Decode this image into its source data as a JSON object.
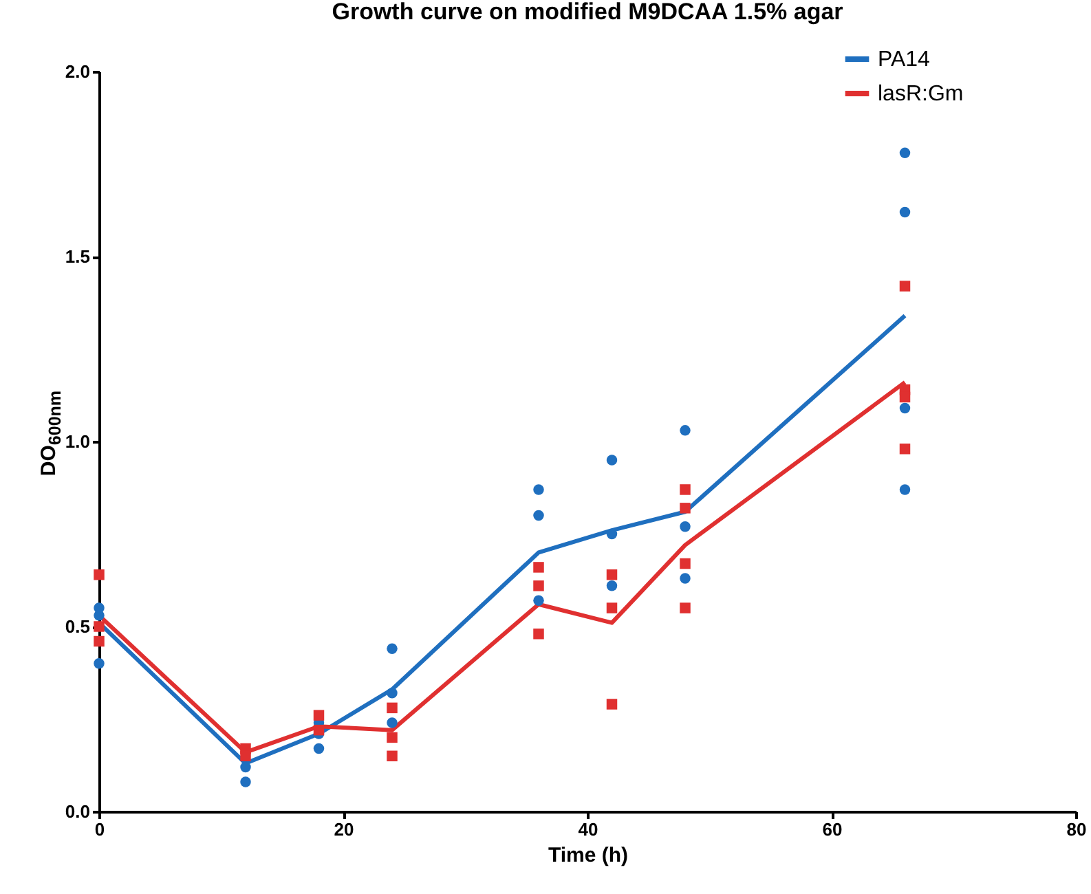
{
  "chart_data": {
    "type": "line",
    "title": "Growth curve on modified M9DCAA 1.5% agar",
    "xlabel": "Time (h)",
    "ylabel": "DO$_{600nm}$",
    "xlim": [
      0,
      80
    ],
    "xticks": [
      0,
      20,
      40,
      60,
      80
    ],
    "ylim": [
      0,
      2
    ],
    "yticks": [
      {
        "value": 0,
        "label": "0.0"
      },
      {
        "value": 0.5,
        "label": "0.5"
      },
      {
        "value": 1,
        "label": "1.0"
      },
      {
        "value": 1.5,
        "label": "1.5"
      },
      {
        "value": 2,
        "label": "2.0"
      }
    ],
    "grid": false,
    "legend": "top right",
    "series": [
      {
        "name": "PA14",
        "color": "#1f6fbf",
        "x": [
          0,
          12,
          18,
          24,
          36,
          42,
          48,
          66
        ],
        "values": [
          0.51,
          0.13,
          0.21,
          0.33,
          0.7,
          0.76,
          0.81,
          1.34
        ]
      },
      {
        "type": "scatter",
        "marker": "circle",
        "color": "#1f6fbf",
        "x": [
          0,
          0,
          0,
          12,
          12,
          18,
          18,
          18,
          24,
          24,
          24,
          36,
          36,
          36,
          42,
          42,
          42,
          48,
          48,
          48,
          66,
          66,
          66,
          66
        ],
        "values": [
          0.55,
          0.53,
          0.4,
          0.12,
          0.08,
          0.24,
          0.21,
          0.17,
          0.44,
          0.32,
          0.24,
          0.87,
          0.8,
          0.57,
          0.95,
          0.75,
          0.61,
          1.03,
          0.77,
          0.63,
          1.78,
          1.62,
          1.09,
          0.87
        ]
      },
      {
        "name": "lasR:Gm",
        "color": "#e03030",
        "x": [
          0,
          12,
          18,
          24,
          36,
          42,
          48,
          66
        ],
        "values": [
          0.53,
          0.16,
          0.23,
          0.22,
          0.56,
          0.51,
          0.72,
          1.16
        ]
      },
      {
        "type": "scatter",
        "marker": "square",
        "color": "#e03030",
        "x": [
          0,
          0,
          0,
          12,
          12,
          18,
          18,
          24,
          24,
          24,
          36,
          36,
          36,
          42,
          42,
          42,
          48,
          48,
          48,
          48,
          66,
          66,
          66,
          66
        ],
        "values": [
          0.64,
          0.5,
          0.46,
          0.17,
          0.15,
          0.26,
          0.22,
          0.28,
          0.2,
          0.15,
          0.66,
          0.61,
          0.48,
          0.64,
          0.55,
          0.29,
          0.87,
          0.82,
          0.67,
          0.55,
          1.42,
          1.14,
          1.12,
          0.98
        ]
      }
    ]
  }
}
